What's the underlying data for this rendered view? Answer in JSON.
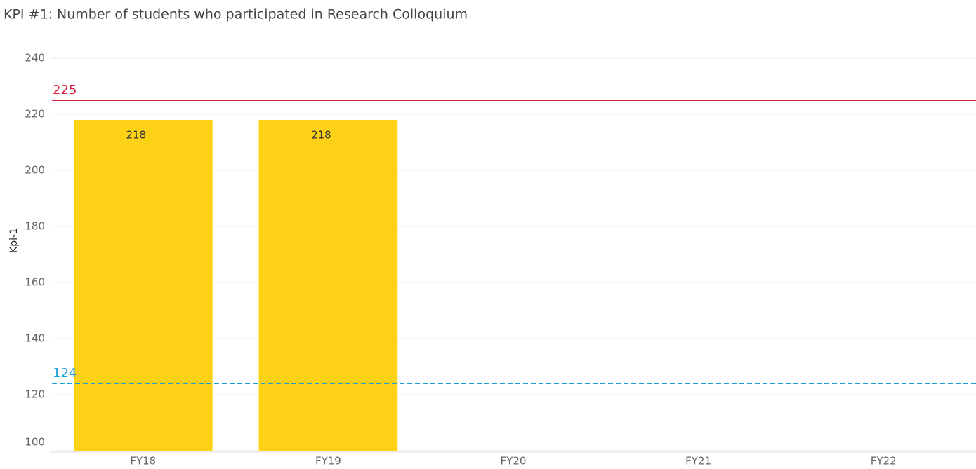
{
  "chart_data": {
    "type": "bar",
    "title": "KPI #1: Number of students who participated in Research Colloquium",
    "y_label": "Kpi-1",
    "categories": [
      "FY18",
      "FY19",
      "FY20",
      "FY21",
      "FY22"
    ],
    "values": [
      218,
      218,
      null,
      null,
      null
    ],
    "color": "#fcd116",
    "ylim": [
      100,
      250
    ],
    "yticks": [
      100,
      120,
      140,
      160,
      180,
      200,
      220,
      240
    ],
    "grid": true,
    "reference_lines": [
      {
        "value": 225,
        "color": "#d4213d",
        "style": "solid"
      },
      {
        "value": 124,
        "color": "#1a9fd6",
        "style": "dashed"
      }
    ]
  }
}
